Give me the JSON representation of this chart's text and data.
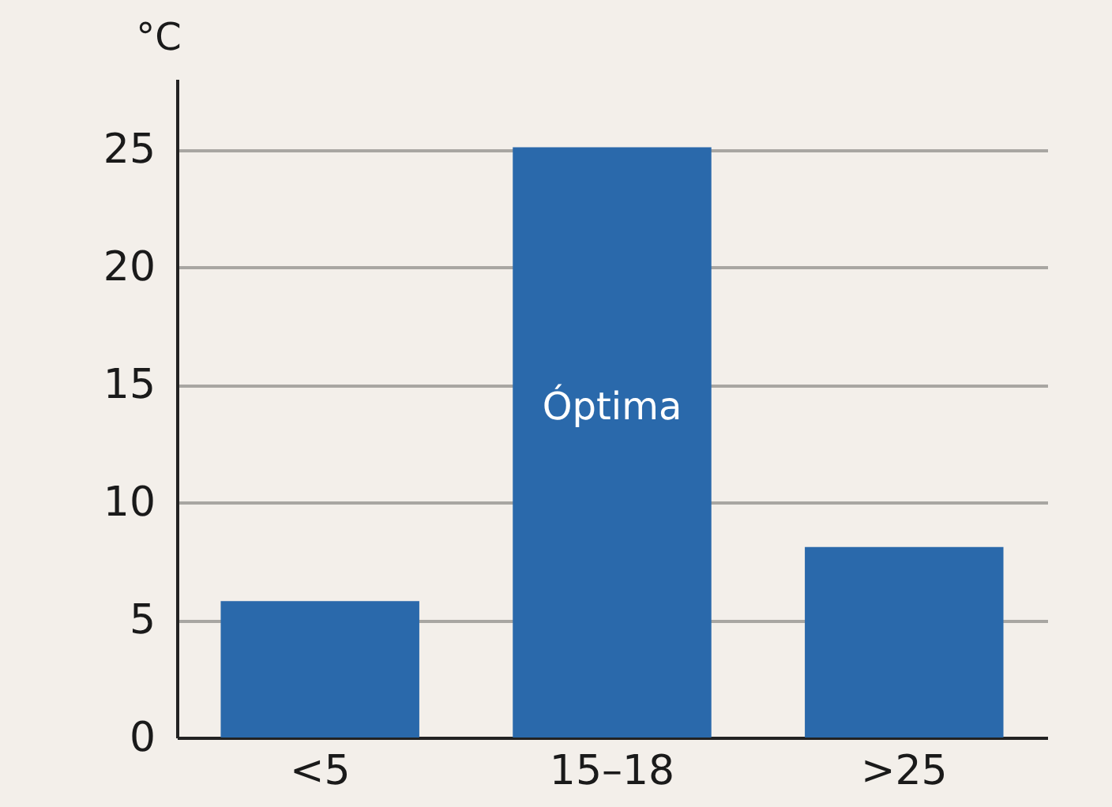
{
  "chart_data": {
    "type": "bar",
    "ylabel": "°C",
    "categories": [
      "<5",
      "15–18",
      ">25"
    ],
    "values": [
      5.8,
      25.1,
      8.1
    ],
    "color": "#2a69ab",
    "ylim": [
      0,
      28
    ],
    "yticks": [
      0,
      5,
      10,
      15,
      20,
      25
    ],
    "grid": "y",
    "annotations": [
      "Óptima"
    ]
  }
}
